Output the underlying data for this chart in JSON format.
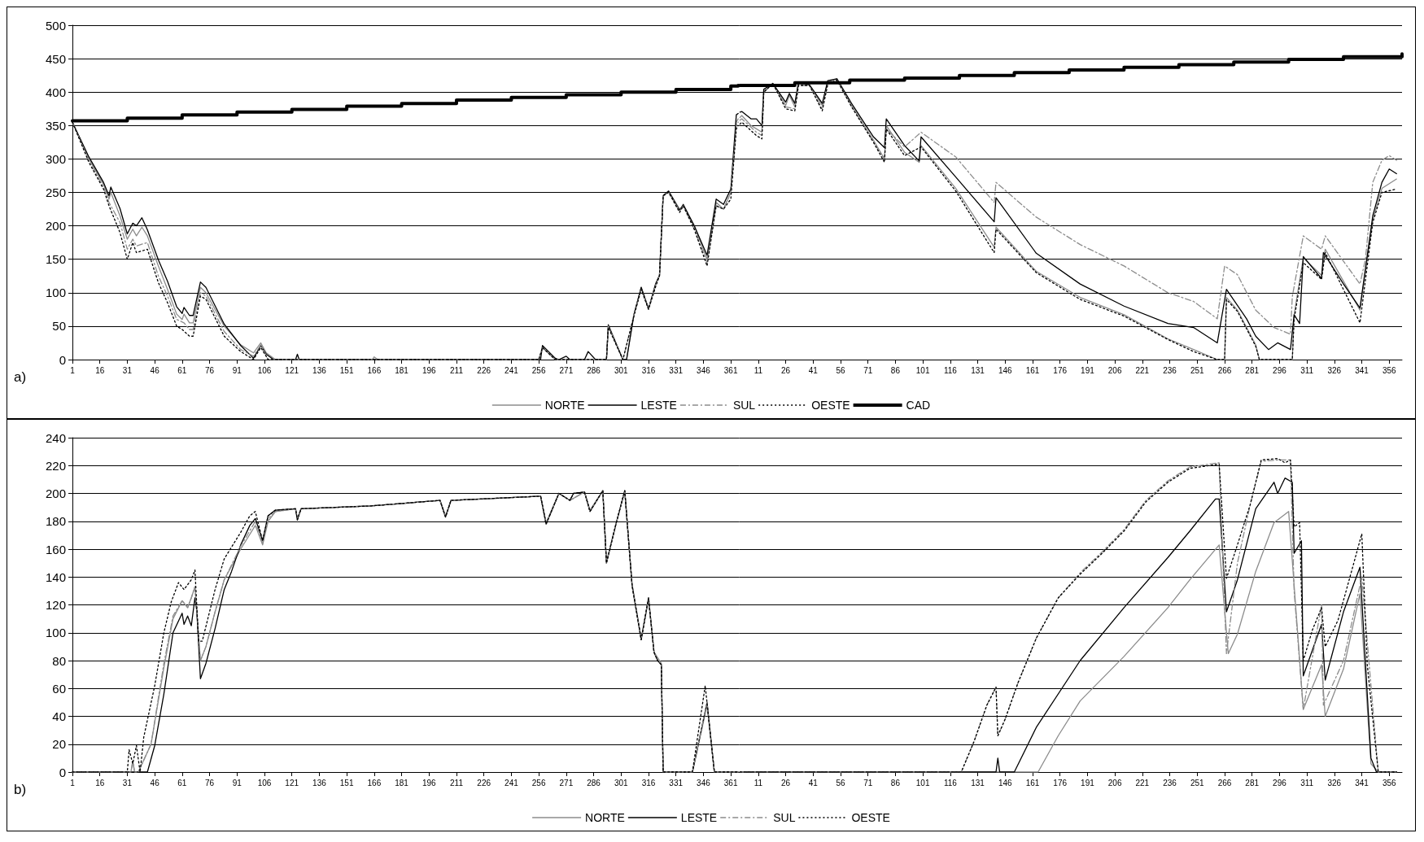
{
  "chart_data": [
    {
      "type": "line",
      "annotations": [
        "a)"
      ],
      "xlim": [
        1,
        365.5
      ],
      "ylim": [
        0,
        500
      ],
      "yticks": [
        0,
        50,
        100,
        150,
        200,
        250,
        300,
        350,
        400,
        450,
        500
      ],
      "grid": "y",
      "xticks": [
        1,
        16,
        31,
        46,
        61,
        76,
        91,
        106,
        121,
        136,
        151,
        166,
        181,
        196,
        211,
        226,
        241,
        256,
        271,
        286,
        301,
        316,
        331,
        346,
        361
      ],
      "series": [
        {
          "color": "#8c8c8c",
          "line_style": "solid",
          "x": [
            1,
            10,
            18,
            21,
            22,
            27,
            31,
            34,
            36,
            39,
            42,
            48,
            53,
            58,
            61,
            62,
            65,
            67,
            71,
            74,
            84,
            93,
            100,
            104,
            107,
            112,
            165,
            166,
            168,
            256,
            258,
            265,
            293,
            294,
            302,
            304,
            308,
            312,
            316,
            320,
            322,
            324,
            327,
            333,
            335,
            341,
            348,
            353,
            357,
            361,
            364,
            365
          ],
          "values": [
            355,
            300,
            262,
            240,
            250,
            215,
            180,
            195,
            185,
            198,
            185,
            140,
            105,
            68,
            60,
            68,
            55,
            55,
            108,
            100,
            50,
            22,
            10,
            25,
            10,
            0,
            0,
            4,
            0,
            0,
            18,
            0,
            0,
            50,
            0,
            0,
            67,
            108,
            76,
            114,
            126,
            245,
            252,
            225,
            230,
            200,
            150,
            235,
            225,
            250,
            355,
            360
          ]
        },
        {
          "color": "#000000",
          "line_style": "solid",
          "x": [
            1,
            10,
            18,
            21,
            22,
            27,
            31,
            34,
            36,
            39,
            42,
            48,
            53,
            58,
            61,
            62,
            65,
            67,
            71,
            74,
            84,
            93,
            100,
            104,
            107,
            111,
            123,
            124,
            125,
            257,
            258,
            265,
            267,
            271,
            273,
            281,
            283,
            287,
            293,
            294,
            302,
            304,
            308,
            312,
            316,
            320,
            322,
            324,
            327,
            333,
            335,
            341,
            348,
            353,
            357,
            361,
            364,
            365
          ],
          "values": [
            355,
            303,
            265,
            245,
            258,
            226,
            188,
            204,
            200,
            212,
            194,
            149,
            117,
            79,
            69,
            78,
            66,
            66,
            116,
            108,
            53,
            21,
            2,
            21,
            8,
            0,
            0,
            8,
            0,
            0,
            21,
            2,
            0,
            5,
            0,
            0,
            12,
            0,
            0,
            52,
            0,
            0,
            67,
            108,
            76,
            114,
            126,
            245,
            252,
            223,
            232,
            200,
            156,
            240,
            232,
            255,
            366,
            368
          ]
        },
        {
          "color": "#8c8c8c",
          "line_style": "dashed",
          "x": [
            1,
            10,
            18,
            21,
            27,
            31,
            34,
            36,
            42,
            48,
            53,
            58,
            62,
            65,
            67,
            71,
            74,
            84,
            93,
            100,
            104,
            108,
            256,
            258,
            265,
            293,
            294,
            302,
            308,
            312,
            316,
            320,
            322,
            324,
            327,
            333,
            335,
            341,
            348,
            353,
            357,
            361,
            364,
            365
          ],
          "values": [
            355,
            298,
            258,
            235,
            205,
            165,
            180,
            170,
            175,
            125,
            95,
            60,
            55,
            45,
            45,
            100,
            95,
            42,
            15,
            5,
            22,
            0,
            0,
            18,
            0,
            0,
            50,
            0,
            67,
            105,
            76,
            112,
            125,
            245,
            250,
            222,
            230,
            195,
            145,
            230,
            225,
            250,
            350,
            355
          ]
        },
        {
          "color": "#000000",
          "line_style": "dotted",
          "x": [
            1,
            10,
            18,
            21,
            27,
            31,
            34,
            36,
            42,
            48,
            53,
            58,
            61,
            65,
            67,
            71,
            74,
            84,
            93,
            100,
            104,
            108,
            256,
            258,
            265,
            293,
            294,
            302,
            308,
            312,
            316,
            320,
            322,
            324,
            327,
            333,
            335,
            341,
            348,
            353,
            357,
            361,
            364,
            365
          ],
          "values": [
            355,
            295,
            255,
            230,
            190,
            150,
            175,
            160,
            165,
            115,
            85,
            50,
            45,
            35,
            35,
            95,
            90,
            35,
            12,
            0,
            18,
            0,
            0,
            18,
            0,
            0,
            48,
            0,
            65,
            105,
            75,
            110,
            125,
            245,
            250,
            220,
            230,
            195,
            140,
            230,
            225,
            240,
            345,
            350
          ]
        },
        {
          "color": "#000000",
          "type": "step",
          "line_style": "solid",
          "x": [
            1,
            31,
            61,
            91,
            121,
            151,
            181,
            211,
            241,
            271,
            301,
            331,
            361,
            365
          ],
          "values": [
            357,
            361,
            366,
            370,
            374,
            379,
            383,
            388,
            392,
            396,
            400,
            404,
            409,
            410
          ]
        }
      ]
    },
    {
      "type": "line",
      "xlim": [
        0.5,
        363
      ],
      "ylim": [
        0,
        500
      ],
      "yticks": [
        0,
        50,
        100,
        150,
        200,
        250,
        300,
        350,
        400,
        450,
        500
      ],
      "grid": "y",
      "legend": "bottom",
      "tick_labels": "x",
      "xticks": [
        11,
        26,
        41,
        56,
        71,
        86,
        101,
        116,
        131,
        146,
        161,
        176,
        191,
        206,
        221,
        236,
        251,
        266,
        281,
        296,
        311,
        326,
        341,
        356
      ],
      "series": [
        {
          "name": "NORTE",
          "color": "#8c8c8c",
          "line_style": "solid",
          "x": [
            1,
            2,
            7,
            10,
            13,
            14,
            19,
            26,
            28,
            31,
            33,
            39,
            46,
            49,
            54,
            62,
            74,
            80,
            81,
            91,
            99,
            100,
            119,
            140,
            141,
            163,
            187,
            211,
            235,
            249,
            262,
            266,
            267,
            273,
            283,
            285,
            303,
            304,
            309,
            319,
            321,
            340,
            347,
            352,
            360
          ],
          "values": [
            362,
            365,
            350,
            345,
            340,
            400,
            413,
            380,
            395,
            378,
            413,
            410,
            380,
            415,
            420,
            380,
            328,
            300,
            350,
            310,
            295,
            320,
            256,
            168,
            198,
            132,
            93,
            67,
            31,
            15,
            0,
            0,
            93,
            74,
            22,
            0,
            0,
            67,
            152,
            126,
            165,
            74,
            209,
            256,
            270
          ]
        },
        {
          "name": "LESTE",
          "color": "#000000",
          "line_style": "solid",
          "x": [
            1,
            2,
            7,
            10,
            13,
            14,
            19,
            26,
            28,
            31,
            33,
            39,
            46,
            49,
            54,
            62,
            74,
            80,
            81,
            91,
            99,
            100,
            119,
            140,
            141,
            163,
            187,
            211,
            235,
            249,
            262,
            267,
            278,
            283,
            290,
            295,
            302,
            304,
            307,
            309,
            319,
            320,
            331,
            340,
            347,
            352,
            356,
            360
          ],
          "values": [
            370,
            371,
            360,
            360,
            350,
            404,
            413,
            385,
            398,
            383,
            415,
            411,
            383,
            417,
            420,
            383,
            333,
            317,
            360,
            320,
            297,
            333,
            273,
            206,
            242,
            159,
            113,
            80,
            54,
            48,
            25,
            105,
            61,
            35,
            15,
            25,
            15,
            67,
            54,
            154,
            121,
            160,
            113,
            77,
            215,
            265,
            285,
            278
          ]
        },
        {
          "name": "SUL",
          "color": "#8c8c8c",
          "line_style": "dashed",
          "x": [
            1,
            2,
            10,
            13,
            14,
            19,
            26,
            31,
            33,
            39,
            46,
            49,
            54,
            62,
            74,
            80,
            81,
            91,
            100,
            119,
            140,
            141,
            163,
            187,
            211,
            235,
            249,
            262,
            266,
            273,
            283,
            293,
            302,
            303,
            309,
            319,
            321,
            340,
            343,
            347,
            352,
            356,
            360
          ],
          "values": [
            358,
            360,
            340,
            335,
            400,
            412,
            378,
            375,
            410,
            410,
            375,
            412,
            418,
            380,
            325,
            300,
            345,
            318,
            340,
            303,
            235,
            265,
            213,
            172,
            140,
            100,
            87,
            61,
            140,
            127,
            74,
            48,
            38,
            94,
            185,
            165,
            185,
            113,
            150,
            265,
            298,
            305,
            298
          ]
        },
        {
          "name": "OESTE",
          "color": "#000000",
          "line_style": "dotted",
          "x": [
            1,
            2,
            10,
            13,
            14,
            19,
            26,
            31,
            33,
            39,
            46,
            49,
            54,
            62,
            74,
            80,
            81,
            91,
            100,
            119,
            140,
            141,
            163,
            187,
            211,
            235,
            249,
            262,
            266,
            267,
            273,
            283,
            285,
            303,
            304,
            309,
            319,
            321,
            340,
            347,
            352,
            360
          ],
          "values": [
            352,
            355,
            335,
            330,
            400,
            413,
            375,
            372,
            410,
            410,
            372,
            412,
            418,
            378,
            325,
            295,
            345,
            305,
            318,
            252,
            160,
            195,
            130,
            90,
            65,
            30,
            12,
            0,
            0,
            90,
            72,
            20,
            0,
            0,
            60,
            145,
            120,
            160,
            55,
            205,
            250,
            255
          ]
        },
        {
          "name": "CAD",
          "color": "#000000",
          "type": "step",
          "line_style": "solid",
          "x": [
            1,
            31,
            61,
            91,
            121,
            151,
            181,
            211,
            241,
            271,
            301,
            331,
            363
          ],
          "values": [
            410,
            414,
            418,
            421,
            425,
            429,
            433,
            437,
            441,
            445,
            449,
            453,
            457
          ]
        }
      ]
    },
    {
      "type": "line",
      "annotations": [
        "b)"
      ],
      "xlim": [
        1,
        365.5
      ],
      "ylim": [
        0,
        240
      ],
      "yticks": [
        0,
        20,
        40,
        60,
        80,
        100,
        120,
        140,
        160,
        180,
        200,
        220,
        240
      ],
      "grid": "y",
      "xticks": [
        1,
        16,
        31,
        46,
        61,
        76,
        91,
        106,
        121,
        136,
        151,
        166,
        181,
        196,
        211,
        226,
        241,
        256,
        271,
        286,
        301,
        316,
        331,
        346,
        361
      ],
      "series": [
        {
          "color": "#8c8c8c",
          "line_style": "solid",
          "x": [
            1,
            33,
            34,
            35,
            37,
            44,
            51,
            56,
            61,
            64,
            66,
            68,
            71,
            74,
            79,
            84,
            93,
            101,
            105,
            108,
            112,
            123,
            124,
            126,
            164,
            202,
            205,
            208,
            257,
            260,
            267,
            273,
            281,
            284,
            291,
            293,
            298,
            303,
            307,
            312,
            316,
            319,
            323,
            324,
            340,
            348,
            352,
            365
          ],
          "values": [
            0,
            0,
            8,
            0,
            0,
            20,
            75,
            110,
            123,
            118,
            125,
            133,
            80,
            90,
            115,
            138,
            160,
            177,
            163,
            180,
            187,
            189,
            182,
            189,
            191,
            195,
            184,
            195,
            198,
            179,
            200,
            195,
            201,
            188,
            202,
            151,
            177,
            202,
            135,
            96,
            124,
            86,
            78,
            0,
            0,
            48,
            0,
            0
          ]
        },
        {
          "color": "#000000",
          "line_style": "solid",
          "x": [
            1,
            42,
            46,
            51,
            56,
            61,
            62,
            64,
            66,
            68,
            69,
            71,
            74,
            79,
            84,
            88,
            93,
            98,
            101,
            105,
            108,
            112,
            123,
            124,
            126,
            164,
            202,
            205,
            208,
            257,
            260,
            267,
            273,
            275,
            281,
            284,
            291,
            293,
            298,
            303,
            307,
            312,
            316,
            319,
            321,
            323,
            324,
            340,
            348,
            352,
            365
          ],
          "values": [
            0,
            0,
            19,
            56,
            100,
            114,
            106,
            112,
            105,
            125,
            116,
            67,
            78,
            103,
            131,
            144,
            163,
            177,
            182,
            166,
            184,
            188,
            189,
            181,
            189,
            191,
            195,
            183,
            195,
            198,
            178,
            200,
            195,
            200,
            201,
            187,
            202,
            150,
            177,
            202,
            134,
            95,
            125,
            86,
            80,
            77,
            0,
            0,
            50,
            0,
            0
          ]
        },
        {
          "color": "#8c8c8c",
          "line_style": "dashed",
          "x": [
            1,
            33,
            34,
            35,
            37,
            44,
            51,
            56,
            61,
            64,
            66,
            68,
            71,
            74,
            79,
            84,
            93,
            101,
            105,
            108,
            112,
            123,
            124,
            126,
            164,
            202,
            205,
            208,
            257,
            260,
            267,
            273,
            281,
            284,
            291,
            293,
            298,
            303,
            307,
            312,
            316,
            319,
            323,
            324,
            340,
            348,
            352,
            365
          ],
          "values": [
            0,
            0,
            8,
            0,
            0,
            20,
            78,
            112,
            123,
            118,
            125,
            133,
            80,
            90,
            115,
            138,
            162,
            180,
            164,
            182,
            187,
            189,
            182,
            189,
            191,
            195,
            183,
            195,
            198,
            178,
            200,
            195,
            201,
            187,
            202,
            150,
            177,
            202,
            134,
            95,
            125,
            86,
            77,
            0,
            0,
            50,
            0,
            0
          ]
        },
        {
          "color": "#000000",
          "line_style": "dotted",
          "x": [
            1,
            31,
            32,
            34,
            36,
            38,
            40,
            46,
            51,
            55,
            59,
            62,
            66,
            68,
            70,
            72,
            79,
            84,
            93,
            98,
            101,
            105,
            108,
            112,
            123,
            124,
            126,
            164,
            202,
            205,
            208,
            257,
            260,
            267,
            273,
            275,
            281,
            284,
            291,
            293,
            298,
            303,
            307,
            312,
            316,
            319,
            321,
            323,
            324,
            340,
            347,
            352,
            365
          ],
          "values": [
            0,
            0,
            16,
            6,
            19,
            0,
            25,
            62,
            100,
            122,
            136,
            131,
            138,
            145,
            94,
            94,
            131,
            153,
            172,
            184,
            187,
            166,
            184,
            188,
            189,
            181,
            189,
            191,
            195,
            183,
            195,
            198,
            178,
            200,
            195,
            200,
            201,
            187,
            202,
            150,
            177,
            202,
            134,
            95,
            125,
            86,
            80,
            77,
            0,
            0,
            62,
            0,
            0
          ]
        }
      ]
    },
    {
      "type": "line",
      "xlim": [
        0.5,
        363
      ],
      "ylim": [
        0,
        240
      ],
      "yticks": [
        0,
        20,
        40,
        60,
        80,
        100,
        120,
        140,
        160,
        180,
        200,
        220,
        240
      ],
      "grid": "y",
      "legend": "bottom",
      "tick_labels": "x",
      "xticks": [
        11,
        26,
        41,
        56,
        71,
        86,
        101,
        116,
        131,
        146,
        161,
        176,
        191,
        206,
        221,
        236,
        251,
        266,
        281,
        296,
        311,
        326,
        341,
        356
      ],
      "series": [
        {
          "name": "NORTE",
          "color": "#8c8c8c",
          "line_style": "solid",
          "x": [
            1,
            164,
            175,
            187,
            211,
            235,
            247,
            263,
            268,
            273,
            283,
            293,
            301,
            304,
            309,
            319,
            321,
            331,
            340,
            346,
            350,
            360
          ],
          "values": [
            0,
            0,
            26,
            51,
            83,
            118,
            138,
            163,
            85,
            99,
            144,
            179,
            187,
            134,
            45,
            77,
            40,
            74,
            128,
            6,
            0,
            0
          ]
        },
        {
          "name": "LESTE",
          "color": "#000000",
          "line_style": "solid",
          "x": [
            1,
            141,
            142,
            143,
            151,
            163,
            187,
            211,
            235,
            247,
            261,
            263,
            267,
            273,
            283,
            293,
            295,
            299,
            303,
            304,
            308,
            309,
            319,
            321,
            331,
            340,
            346,
            349,
            360
          ],
          "values": [
            0,
            0,
            10,
            0,
            0,
            32,
            80,
            118,
            154,
            173,
            196,
            196,
            115,
            138,
            189,
            208,
            200,
            211,
            208,
            157,
            166,
            69,
            106,
            66,
            115,
            147,
            10,
            0,
            0
          ]
        },
        {
          "name": "SUL",
          "color": "#8c8c8c",
          "line_style": "dashed",
          "x": [
            1,
            122,
            129,
            136,
            141,
            142,
            146,
            153,
            163,
            175,
            187,
            199,
            211,
            223,
            235,
            247,
            263,
            267,
            273,
            280,
            286,
            295,
            302,
            304,
            309,
            319,
            320,
            331,
            341,
            350,
            360
          ],
          "values": [
            0,
            0,
            22,
            48,
            61,
            26,
            38,
            64,
            96,
            125,
            143,
            158,
            174,
            195,
            209,
            219,
            222,
            85,
            150,
            192,
            223,
            224,
            224,
            130,
            45,
            120,
            48,
            80,
            140,
            0,
            0
          ]
        },
        {
          "name": "OESTE",
          "color": "#000000",
          "line_style": "dotted",
          "x": [
            1,
            122,
            129,
            136,
            141,
            142,
            146,
            153,
            163,
            175,
            187,
            199,
            211,
            223,
            235,
            247,
            263,
            267,
            273,
            280,
            286,
            295,
            299,
            302,
            304,
            307,
            309,
            314,
            319,
            321,
            328,
            336,
            341,
            344,
            350,
            360
          ],
          "values": [
            0,
            0,
            22,
            48,
            61,
            26,
            38,
            64,
            96,
            125,
            142,
            157,
            173,
            194,
            208,
            218,
            221,
            139,
            163,
            192,
            224,
            225,
            222,
            224,
            176,
            179,
            80,
            102,
            118,
            90,
            109,
            147,
            171,
            77,
            0,
            0
          ]
        }
      ]
    }
  ]
}
